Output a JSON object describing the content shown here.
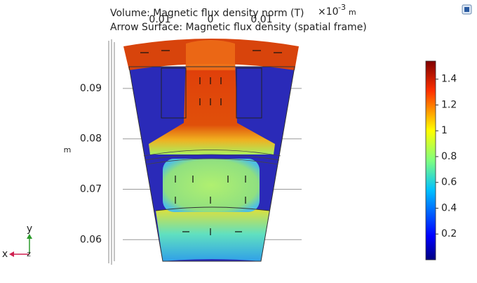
{
  "plot_title": [
    "Volume: Magnetic flux density norm (T)",
    "Arrow Surface: Magnetic flux density (spatial frame)"
  ],
  "x_axis": {
    "multiplier": "×10",
    "exponent": "-3",
    "unit": "m",
    "tick_labels": [
      "0.01",
      "0",
      "0.01"
    ]
  },
  "y_axis": {
    "unit": "m",
    "ylim": [
      0.0553,
      0.0996
    ],
    "ticks": [
      0.09,
      0.08,
      0.07,
      0.06
    ]
  },
  "colorbar": {
    "range": [
      0,
      1.54
    ],
    "ticks": [
      1.4,
      1.2,
      1,
      0.8,
      0.6,
      0.4,
      0.2
    ]
  },
  "triad": {
    "y": "y",
    "x": "x",
    "z": "z"
  }
}
